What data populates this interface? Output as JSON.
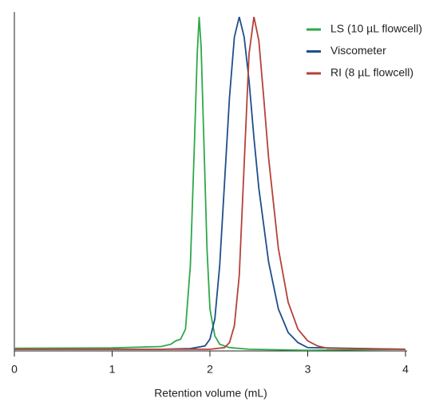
{
  "chart_data": {
    "type": "line",
    "x_label": "Retention volume (mL)",
    "xlim": [
      0,
      4
    ],
    "xticks": [
      0,
      1,
      2,
      3,
      4
    ],
    "ylim": [
      -0.005,
      1
    ],
    "legend": "upper right",
    "series": [
      {
        "name": "LS (10 µL flowcell)",
        "color": "#2ea84a",
        "x": [
          0,
          1.0,
          1.5,
          1.6,
          1.65,
          1.7,
          1.75,
          1.8,
          1.84,
          1.87,
          1.89,
          1.91,
          1.94,
          1.97,
          2.0,
          2.05,
          2.1,
          2.2,
          2.4,
          3.0,
          4.0
        ],
        "values": [
          0.003,
          0.004,
          0.008,
          0.015,
          0.025,
          0.03,
          0.06,
          0.25,
          0.6,
          0.88,
          0.99,
          0.9,
          0.6,
          0.3,
          0.12,
          0.04,
          0.015,
          0.005,
          0.0,
          -0.003,
          0.0
        ]
      },
      {
        "name": "Viscometer",
        "color": "#1f4e8c",
        "x": [
          0,
          1.5,
          1.8,
          1.95,
          2.0,
          2.05,
          2.1,
          2.15,
          2.2,
          2.25,
          2.3,
          2.35,
          2.4,
          2.45,
          2.5,
          2.6,
          2.7,
          2.8,
          2.9,
          3.0,
          4.0
        ],
        "values": [
          0,
          0,
          0.002,
          0.01,
          0.03,
          0.09,
          0.25,
          0.5,
          0.75,
          0.93,
          0.99,
          0.93,
          0.8,
          0.63,
          0.48,
          0.26,
          0.12,
          0.05,
          0.02,
          0.005,
          0
        ]
      },
      {
        "name": "RI (8 µL flowcell)",
        "color": "#b5413a",
        "x": [
          0,
          2.0,
          2.15,
          2.2,
          2.25,
          2.3,
          2.35,
          2.4,
          2.45,
          2.5,
          2.55,
          2.6,
          2.7,
          2.8,
          2.9,
          3.0,
          3.1,
          3.2,
          4.0
        ],
        "values": [
          0,
          0,
          0.005,
          0.02,
          0.07,
          0.22,
          0.55,
          0.88,
          0.99,
          0.92,
          0.75,
          0.57,
          0.3,
          0.14,
          0.06,
          0.025,
          0.01,
          0.003,
          0
        ]
      }
    ]
  }
}
